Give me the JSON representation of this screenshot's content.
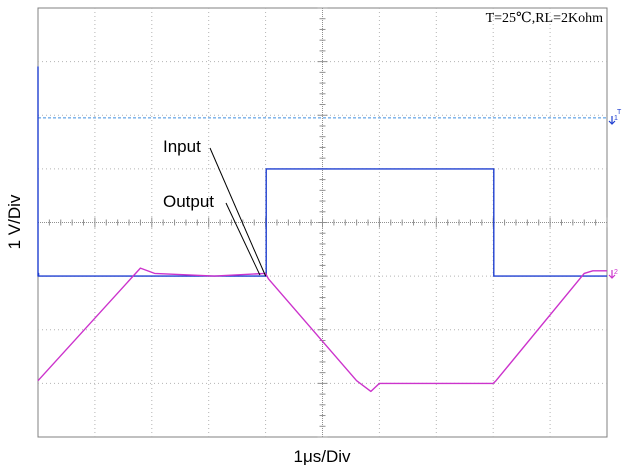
{
  "chart_data": {
    "type": "line",
    "title": "T=25℃,RL=2Kohm",
    "xlabel": "1μs/Div",
    "ylabel": "1 V/Div",
    "x_unit": "div",
    "y_unit": "div",
    "xlim": [
      0,
      10
    ],
    "ylim": [
      -4,
      4
    ],
    "grid": true,
    "series": [
      {
        "name": "Input",
        "color": "#1f3fd0",
        "x": [
          0,
          0,
          0,
          0.01,
          0.01,
          4.01,
          4.01,
          8.01,
          8.01,
          10
        ],
        "y": [
          -0.9,
          2.9,
          -1.0,
          -0.95,
          -1.0,
          -1.0,
          1.0,
          1.0,
          -1.0,
          -1.0
        ]
      },
      {
        "name": "Output",
        "color": "#cc33cc",
        "x": [
          0,
          1.8,
          2.05,
          3.1,
          4.0,
          4.05,
          5.6,
          5.85,
          6.0,
          8.0,
          8.05,
          9.6,
          9.75,
          10
        ],
        "y": [
          -2.95,
          -0.85,
          -0.95,
          -1.0,
          -0.95,
          -1.05,
          -2.95,
          -3.15,
          -3.0,
          -3.0,
          -2.95,
          -0.95,
          -0.9,
          -0.9
        ]
      }
    ],
    "annotations": [
      {
        "text": "Input",
        "target_series": "Input"
      },
      {
        "text": "Output",
        "target_series": "Output"
      }
    ],
    "markers": [
      {
        "text": "1",
        "color": "#1f3fd0"
      },
      {
        "text": "T",
        "color": "#1f3fd0"
      },
      {
        "text": "2",
        "color": "#cc33cc"
      }
    ],
    "reference_line": {
      "y": 1.95,
      "color": "#3f8fe0",
      "style": "dashed"
    }
  }
}
